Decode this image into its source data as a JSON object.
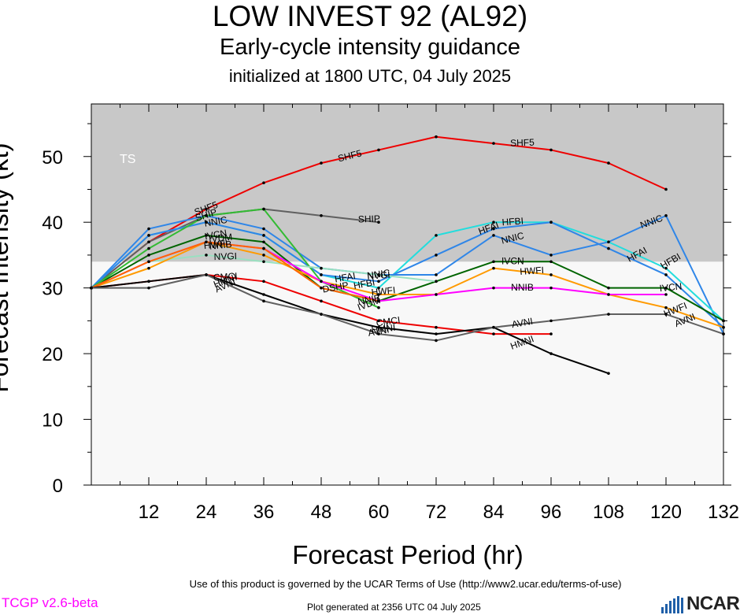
{
  "header": {
    "title": "LOW INVEST 92 (AL92)",
    "subtitle": "Early-cycle intensity guidance",
    "initialized": "initialized at 1800 UTC, 04 July 2025"
  },
  "footer": {
    "terms": "Use of this product is governed by the UCAR Terms of Use (http://www2.ucar.edu/terms-of-use)",
    "version": "TCGP v2.6-beta",
    "generated": "Plot generated at 2356 UTC   04 July 2025",
    "logo_text": "NCAR"
  },
  "chart_data": {
    "type": "line",
    "xlabel": "Forecast Period (hr)",
    "ylabel": "Forecast Intensity (kt)",
    "xlim": [
      0,
      132
    ],
    "ylim": [
      0,
      58
    ],
    "xticks": [
      12,
      24,
      36,
      48,
      60,
      72,
      84,
      96,
      108,
      120,
      132
    ],
    "yticks": [
      0,
      10,
      20,
      30,
      40,
      50
    ],
    "band": {
      "label": "TS",
      "from": 34,
      "to": 58,
      "color": "#c8c8c8"
    },
    "background": "#f8f8f8",
    "series": [
      {
        "name": "SHF5",
        "color": "#ee0000",
        "points": [
          [
            0,
            30
          ],
          [
            12,
            37
          ],
          [
            24,
            42
          ],
          [
            36,
            46
          ],
          [
            48,
            49
          ],
          [
            60,
            51
          ],
          [
            72,
            53
          ],
          [
            84,
            52
          ],
          [
            96,
            51
          ],
          [
            108,
            49
          ],
          [
            120,
            45
          ]
        ],
        "labels": [
          {
            "x": 24,
            "y": 42,
            "angle": -20
          },
          {
            "x": 54,
            "y": 50,
            "angle": -14
          },
          {
            "x": 90,
            "y": 52,
            "angle": -2
          }
        ]
      },
      {
        "name": "SHIP",
        "color": "#606060",
        "points": [
          [
            0,
            30
          ],
          [
            12,
            37
          ],
          [
            24,
            41
          ],
          [
            36,
            42
          ],
          [
            48,
            41
          ],
          [
            60,
            40
          ]
        ],
        "labels": [
          {
            "x": 24,
            "y": 41,
            "angle": -18
          },
          {
            "x": 58,
            "y": 40.4,
            "angle": -2
          }
        ]
      },
      {
        "name": "NNIC",
        "color": "#2f86e8",
        "points": [
          [
            0,
            30
          ],
          [
            12,
            39
          ],
          [
            24,
            41
          ],
          [
            36,
            39
          ],
          [
            48,
            33
          ],
          [
            60,
            32
          ],
          [
            72,
            32
          ],
          [
            84,
            38
          ],
          [
            96,
            35
          ],
          [
            108,
            37
          ],
          [
            120,
            41
          ],
          [
            132,
            23
          ]
        ],
        "labels": [
          {
            "x": 26,
            "y": 40,
            "angle": -10
          },
          {
            "x": 60,
            "y": 32,
            "angle": -8
          },
          {
            "x": 88,
            "y": 37.5,
            "angle": -14
          },
          {
            "x": 117,
            "y": 40,
            "angle": -20
          }
        ]
      },
      {
        "name": "HFBI",
        "color": "#22dddd",
        "points": [
          [
            0,
            30
          ],
          [
            12,
            38
          ],
          [
            24,
            40
          ],
          [
            36,
            38
          ],
          [
            48,
            32
          ],
          [
            60,
            30
          ],
          [
            72,
            38
          ],
          [
            84,
            40
          ],
          [
            96,
            40
          ],
          [
            108,
            37
          ],
          [
            120,
            33
          ],
          [
            132,
            25
          ]
        ],
        "labels": [
          {
            "x": 57,
            "y": 30.5,
            "angle": -10
          },
          {
            "x": 88,
            "y": 40,
            "angle": -4
          },
          {
            "x": 121,
            "y": 34,
            "angle": -30
          }
        ]
      },
      {
        "name": "HFAI",
        "color": "#2f86e8",
        "points": [
          [
            0,
            30
          ],
          [
            12,
            38
          ],
          [
            24,
            40
          ],
          [
            36,
            38
          ],
          [
            48,
            32
          ],
          [
            60,
            31
          ],
          [
            72,
            35
          ],
          [
            84,
            39
          ],
          [
            96,
            40
          ],
          [
            108,
            36
          ],
          [
            120,
            32
          ],
          [
            132,
            24
          ]
        ],
        "labels": [
          {
            "x": 53,
            "y": 31.5,
            "angle": -10
          },
          {
            "x": 83,
            "y": 39,
            "angle": -20
          },
          {
            "x": 114,
            "y": 35,
            "angle": -28
          }
        ]
      },
      {
        "name": "IVCN",
        "color": "#006400",
        "points": [
          [
            0,
            30
          ],
          [
            12,
            35
          ],
          [
            24,
            38
          ],
          [
            36,
            37
          ],
          [
            48,
            30
          ],
          [
            60,
            28
          ],
          [
            72,
            31
          ],
          [
            84,
            34
          ],
          [
            96,
            34
          ],
          [
            108,
            30
          ],
          [
            120,
            30
          ],
          [
            132,
            25
          ]
        ],
        "labels": [
          {
            "x": 26,
            "y": 38,
            "angle": -10
          },
          {
            "x": 88,
            "y": 34,
            "angle": 0
          },
          {
            "x": 121,
            "y": 30,
            "angle": -6
          }
        ]
      },
      {
        "name": "IVDM",
        "color": "#33bb33",
        "points": [
          [
            0,
            30
          ],
          [
            12,
            36
          ],
          [
            24,
            41
          ],
          [
            36,
            42
          ],
          [
            48,
            31
          ],
          [
            60,
            27
          ]
        ],
        "labels": [
          {
            "x": 27,
            "y": 37.5,
            "angle": -6
          },
          {
            "x": 58,
            "y": 27.5,
            "angle": -20
          }
        ]
      },
      {
        "name": "NVGI",
        "color": "#99e0c0",
        "points": [
          [
            0,
            30
          ],
          [
            12,
            34
          ],
          [
            24,
            35
          ],
          [
            36,
            34
          ],
          [
            48,
            33
          ],
          [
            60,
            32
          ],
          [
            72,
            31
          ]
        ],
        "labels": [
          {
            "x": 28,
            "y": 34.7,
            "angle": -2
          },
          {
            "x": 60,
            "y": 31.8,
            "angle": -4
          }
        ]
      },
      {
        "name": "HWFI",
        "color": "#ff9a00",
        "points": [
          [
            0,
            30
          ],
          [
            12,
            33
          ],
          [
            24,
            37
          ],
          [
            36,
            35
          ],
          [
            48,
            31
          ],
          [
            60,
            29
          ],
          [
            72,
            29
          ],
          [
            84,
            33
          ],
          [
            96,
            32
          ],
          [
            108,
            29
          ],
          [
            120,
            27
          ],
          [
            132,
            24
          ]
        ],
        "labels": [
          {
            "x": 26,
            "y": 36.5,
            "angle": -6
          },
          {
            "x": 61,
            "y": 29.4,
            "angle": -6
          },
          {
            "x": 92,
            "y": 32.5,
            "angle": -4
          },
          {
            "x": 122,
            "y": 26.6,
            "angle": -22
          }
        ]
      },
      {
        "name": "NNIB",
        "color": "#ff00ff",
        "points": [
          [
            0,
            30
          ],
          [
            12,
            34
          ],
          [
            24,
            37
          ],
          [
            36,
            36
          ],
          [
            48,
            31
          ],
          [
            60,
            28
          ],
          [
            72,
            29
          ],
          [
            84,
            30
          ],
          [
            96,
            30
          ],
          [
            108,
            29
          ],
          [
            120,
            29
          ]
        ],
        "labels": [
          {
            "x": 27,
            "y": 36.4,
            "angle": -6
          },
          {
            "x": 58,
            "y": 28.1,
            "angle": -10
          },
          {
            "x": 90,
            "y": 30,
            "angle": 0
          }
        ]
      },
      {
        "name": "DSHP",
        "color": "#ff6600",
        "points": [
          [
            0,
            30
          ],
          [
            12,
            34
          ],
          [
            24,
            37
          ],
          [
            36,
            36
          ],
          [
            48,
            30
          ],
          [
            60,
            28
          ]
        ],
        "labels": [
          {
            "x": 51,
            "y": 30,
            "angle": -10
          }
        ]
      },
      {
        "name": "CMCI",
        "color": "#ee0000",
        "points": [
          [
            0,
            30
          ],
          [
            12,
            31
          ],
          [
            24,
            32
          ],
          [
            36,
            31
          ],
          [
            48,
            28
          ],
          [
            60,
            25
          ],
          [
            72,
            24
          ],
          [
            84,
            23
          ],
          [
            96,
            23
          ]
        ],
        "labels": [
          {
            "x": 28,
            "y": 31.6,
            "angle": -4
          },
          {
            "x": 62,
            "y": 24.8,
            "angle": -8
          }
        ]
      },
      {
        "name": "HMNI",
        "color": "#000000",
        "points": [
          [
            0,
            30
          ],
          [
            12,
            31
          ],
          [
            24,
            32
          ],
          [
            36,
            29
          ],
          [
            48,
            26
          ],
          [
            60,
            24
          ],
          [
            72,
            23
          ],
          [
            84,
            24
          ],
          [
            96,
            20
          ],
          [
            108,
            17
          ]
        ],
        "labels": [
          {
            "x": 28,
            "y": 31,
            "angle": -20
          },
          {
            "x": 61,
            "y": 23.7,
            "angle": -6
          },
          {
            "x": 90,
            "y": 21.6,
            "angle": -20
          }
        ]
      },
      {
        "name": "AVNI",
        "color": "#606060",
        "points": [
          [
            0,
            30
          ],
          [
            12,
            30
          ],
          [
            24,
            32
          ],
          [
            36,
            28
          ],
          [
            48,
            26
          ],
          [
            60,
            23
          ],
          [
            72,
            22
          ],
          [
            84,
            24
          ],
          [
            96,
            25
          ],
          [
            108,
            26
          ],
          [
            120,
            26
          ],
          [
            132,
            23
          ]
        ],
        "labels": [
          {
            "x": 28,
            "y": 30.3,
            "angle": -24
          },
          {
            "x": 60,
            "y": 23.3,
            "angle": -10
          },
          {
            "x": 90,
            "y": 24.6,
            "angle": -10
          },
          {
            "x": 124,
            "y": 25,
            "angle": -22
          }
        ]
      }
    ]
  }
}
